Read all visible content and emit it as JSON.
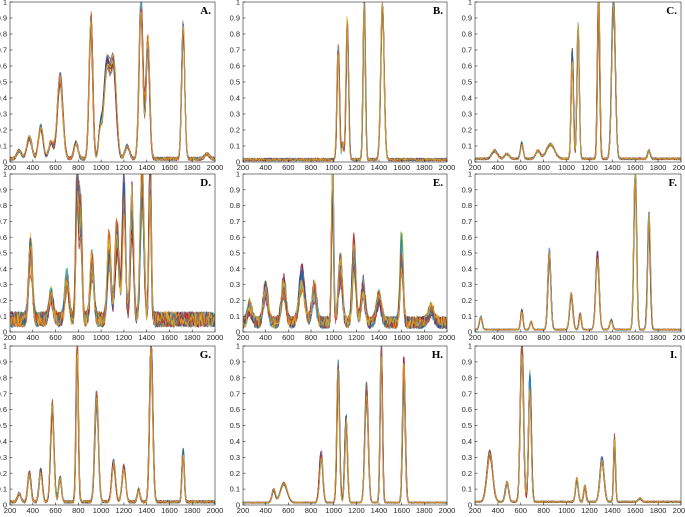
{
  "figure": {
    "palette": [
      "#0072BD",
      "#D95319",
      "#EDB120",
      "#7E2F8E",
      "#77AC30",
      "#4DBEEE",
      "#A2142F"
    ],
    "grid": false,
    "legend": "none"
  },
  "chart_data": [
    {
      "type": "line",
      "panel_label": "A.",
      "xlim": [
        200,
        2000
      ],
      "ylim": [
        0,
        1
      ],
      "xticks": [
        "200",
        "400",
        "600",
        "800",
        "1000",
        "1200",
        "1400",
        "1600",
        "1800",
        "2000"
      ],
      "yticks": [
        "0",
        "0.1",
        "0.2",
        "0.3",
        "0.4",
        "0.5",
        "0.6",
        "0.7",
        "0.8",
        "0.9",
        "1"
      ],
      "series_count": 24,
      "baseline": 0.02,
      "noise": 0.01,
      "jitter": 0.08,
      "peaks": [
        [
          280,
          0.05,
          20
        ],
        [
          370,
          0.13,
          22
        ],
        [
          470,
          0.2,
          20
        ],
        [
          560,
          0.1,
          20
        ],
        [
          640,
          0.5,
          24
        ],
        [
          780,
          0.1,
          18
        ],
        [
          910,
          0.85,
          16
        ],
        [
          990,
          0.15,
          14
        ],
        [
          1050,
          0.58,
          28
        ],
        [
          1110,
          0.55,
          24
        ],
        [
          1230,
          0.08,
          20
        ],
        [
          1350,
          0.97,
          17
        ],
        [
          1410,
          0.72,
          16
        ],
        [
          1720,
          0.8,
          14
        ],
        [
          1930,
          0.03,
          20
        ]
      ]
    },
    {
      "type": "line",
      "panel_label": "B.",
      "xlim": [
        200,
        2000
      ],
      "ylim": [
        0,
        1
      ],
      "xticks": [
        "200",
        "400",
        "600",
        "800",
        "1000",
        "1200",
        "1400",
        "1600",
        "1800",
        "2000"
      ],
      "yticks": [
        "0",
        "0.1",
        "0.2",
        "0.3",
        "0.4",
        "0.5",
        "0.6",
        "0.7",
        "0.8",
        "0.9",
        "1"
      ],
      "series_count": 24,
      "baseline": 0.015,
      "noise": 0.008,
      "jitter": 0.04,
      "peaks": [
        [
          1040,
          0.7,
          11
        ],
        [
          1080,
          0.1,
          8
        ],
        [
          1120,
          0.87,
          11
        ],
        [
          1270,
          0.99,
          10
        ],
        [
          1430,
          0.97,
          15
        ]
      ]
    },
    {
      "type": "line",
      "panel_label": "C.",
      "xlim": [
        200,
        2000
      ],
      "ylim": [
        0,
        1
      ],
      "xticks": [
        "200",
        "400",
        "600",
        "800",
        "1000",
        "1200",
        "1400",
        "1600",
        "1800",
        "2000"
      ],
      "yticks": [
        "0",
        "0.1",
        "0.2",
        "0.3",
        "0.4",
        "0.5",
        "0.6",
        "0.7",
        "0.8",
        "0.9",
        "1"
      ],
      "series_count": 24,
      "baseline": 0.02,
      "noise": 0.006,
      "jitter": 0.08,
      "peaks": [
        [
          370,
          0.05,
          25
        ],
        [
          480,
          0.03,
          20
        ],
        [
          610,
          0.1,
          12
        ],
        [
          750,
          0.05,
          20
        ],
        [
          860,
          0.09,
          35
        ],
        [
          1050,
          0.65,
          10
        ],
        [
          1100,
          0.82,
          10
        ],
        [
          1280,
          0.99,
          10
        ],
        [
          1410,
          0.98,
          16
        ],
        [
          1720,
          0.05,
          12
        ]
      ]
    },
    {
      "type": "line",
      "panel_label": "D.",
      "xlim": [
        200,
        2000
      ],
      "ylim": [
        0,
        1
      ],
      "xticks": [
        "200",
        "400",
        "600",
        "800",
        "1000",
        "1200",
        "1400",
        "1600",
        "1800",
        "2000"
      ],
      "yticks": [
        "0",
        "0.1",
        "0.2",
        "0.3",
        "0.4",
        "0.5",
        "0.6",
        "0.7",
        "0.8",
        "0.9",
        "1"
      ],
      "series_count": 24,
      "baseline": 0.08,
      "noise": 0.05,
      "jitter": 0.25,
      "peaks": [
        [
          380,
          0.42,
          16
        ],
        [
          560,
          0.15,
          18
        ],
        [
          700,
          0.25,
          18
        ],
        [
          790,
          0.9,
          12
        ],
        [
          820,
          0.6,
          12
        ],
        [
          920,
          0.35,
          16
        ],
        [
          1070,
          0.45,
          16
        ],
        [
          1140,
          0.55,
          18
        ],
        [
          1200,
          0.8,
          14
        ],
        [
          1270,
          0.7,
          14
        ],
        [
          1360,
          0.85,
          16
        ],
        [
          1430,
          0.99,
          10
        ]
      ]
    },
    {
      "type": "line",
      "panel_label": "E.",
      "xlim": [
        200,
        2000
      ],
      "ylim": [
        0,
        1
      ],
      "xticks": [
        "200",
        "400",
        "600",
        "800",
        "1000",
        "1200",
        "1400",
        "1600",
        "1800",
        "2000"
      ],
      "yticks": [
        "0",
        "0.1",
        "0.2",
        "0.3",
        "0.4",
        "0.5",
        "0.6",
        "0.7",
        "0.8",
        "0.9",
        "1"
      ],
      "series_count": 24,
      "baseline": 0.06,
      "noise": 0.04,
      "jitter": 0.3,
      "peaks": [
        [
          260,
          0.1,
          20
        ],
        [
          400,
          0.2,
          20
        ],
        [
          560,
          0.22,
          20
        ],
        [
          720,
          0.28,
          25
        ],
        [
          830,
          0.2,
          20
        ],
        [
          990,
          0.98,
          9
        ],
        [
          1060,
          0.35,
          18
        ],
        [
          1180,
          0.42,
          16
        ],
        [
          1260,
          0.22,
          18
        ],
        [
          1400,
          0.15,
          22
        ],
        [
          1600,
          0.45,
          14
        ],
        [
          1860,
          0.08,
          25
        ]
      ]
    },
    {
      "type": "line",
      "panel_label": "F.",
      "xlim": [
        200,
        2000
      ],
      "ylim": [
        0,
        1
      ],
      "xticks": [
        "200",
        "400",
        "600",
        "800",
        "1000",
        "1200",
        "1400",
        "1600",
        "1800",
        "2000"
      ],
      "yticks": [
        "0",
        "0.1",
        "0.2",
        "0.3",
        "0.4",
        "0.5",
        "0.6",
        "0.7",
        "0.8",
        "0.9",
        "1"
      ],
      "series_count": 24,
      "baseline": 0.015,
      "noise": 0.004,
      "jitter": 0.08,
      "peaks": [
        [
          250,
          0.08,
          12
        ],
        [
          610,
          0.12,
          10
        ],
        [
          690,
          0.05,
          10
        ],
        [
          850,
          0.48,
          13
        ],
        [
          1040,
          0.22,
          14
        ],
        [
          1120,
          0.1,
          10
        ],
        [
          1270,
          0.47,
          15
        ],
        [
          1390,
          0.06,
          12
        ],
        [
          1600,
          0.98,
          12
        ],
        [
          1720,
          0.72,
          12
        ]
      ]
    },
    {
      "type": "line",
      "panel_label": "G.",
      "xlim": [
        200,
        2000
      ],
      "ylim": [
        0,
        1
      ],
      "xticks": [
        "200",
        "400",
        "600",
        "800",
        "1000",
        "1200",
        "1400",
        "1600",
        "1800",
        "2000"
      ],
      "yticks": [
        "0",
        "0.1",
        "0.2",
        "0.3",
        "0.4",
        "0.5",
        "0.6",
        "0.7",
        "0.8",
        "0.9",
        "1"
      ],
      "series_count": 24,
      "baseline": 0.02,
      "noise": 0.008,
      "jitter": 0.08,
      "peaks": [
        [
          280,
          0.05,
          15
        ],
        [
          370,
          0.18,
          14
        ],
        [
          470,
          0.2,
          14
        ],
        [
          570,
          0.6,
          15
        ],
        [
          640,
          0.15,
          12
        ],
        [
          790,
          0.99,
          10
        ],
        [
          960,
          0.65,
          16
        ],
        [
          1110,
          0.25,
          16
        ],
        [
          1200,
          0.22,
          16
        ],
        [
          1330,
          0.08,
          12
        ],
        [
          1440,
          0.98,
          14
        ],
        [
          1720,
          0.32,
          10
        ]
      ]
    },
    {
      "type": "line",
      "panel_label": "H.",
      "xlim": [
        200,
        2000
      ],
      "ylim": [
        0,
        1
      ],
      "xticks": [
        "200",
        "400",
        "600",
        "800",
        "1000",
        "1200",
        "1400",
        "1600",
        "1800",
        "2000"
      ],
      "yticks": [
        "0",
        "0.1",
        "0.2",
        "0.3",
        "0.4",
        "0.5",
        "0.6",
        "0.7",
        "0.8",
        "0.9",
        "1"
      ],
      "series_count": 24,
      "baseline": 0.015,
      "noise": 0.004,
      "jitter": 0.1,
      "peaks": [
        [
          470,
          0.08,
          15
        ],
        [
          560,
          0.12,
          30
        ],
        [
          890,
          0.3,
          15
        ],
        [
          1040,
          0.82,
          12
        ],
        [
          1110,
          0.52,
          12
        ],
        [
          1290,
          0.7,
          15
        ],
        [
          1420,
          0.99,
          10
        ],
        [
          1620,
          0.85,
          12
        ]
      ]
    },
    {
      "type": "line",
      "panel_label": "I.",
      "xlim": [
        200,
        2000
      ],
      "ylim": [
        0,
        1
      ],
      "xticks": [
        "200",
        "400",
        "600",
        "800",
        "1000",
        "1200",
        "1400",
        "1600",
        "1800",
        "2000"
      ],
      "yticks": [
        "0",
        "0.1",
        "0.2",
        "0.3",
        "0.4",
        "0.5",
        "0.6",
        "0.7",
        "0.8",
        "0.9",
        "1"
      ],
      "series_count": 24,
      "baseline": 0.02,
      "noise": 0.005,
      "jitter": 0.08,
      "peaks": [
        [
          330,
          0.3,
          25
        ],
        [
          480,
          0.12,
          15
        ],
        [
          610,
          0.98,
          14
        ],
        [
          680,
          0.78,
          12
        ],
        [
          1090,
          0.14,
          12
        ],
        [
          1160,
          0.1,
          10
        ],
        [
          1310,
          0.27,
          18
        ],
        [
          1420,
          0.4,
          8
        ],
        [
          1640,
          0.02,
          15
        ]
      ]
    }
  ]
}
